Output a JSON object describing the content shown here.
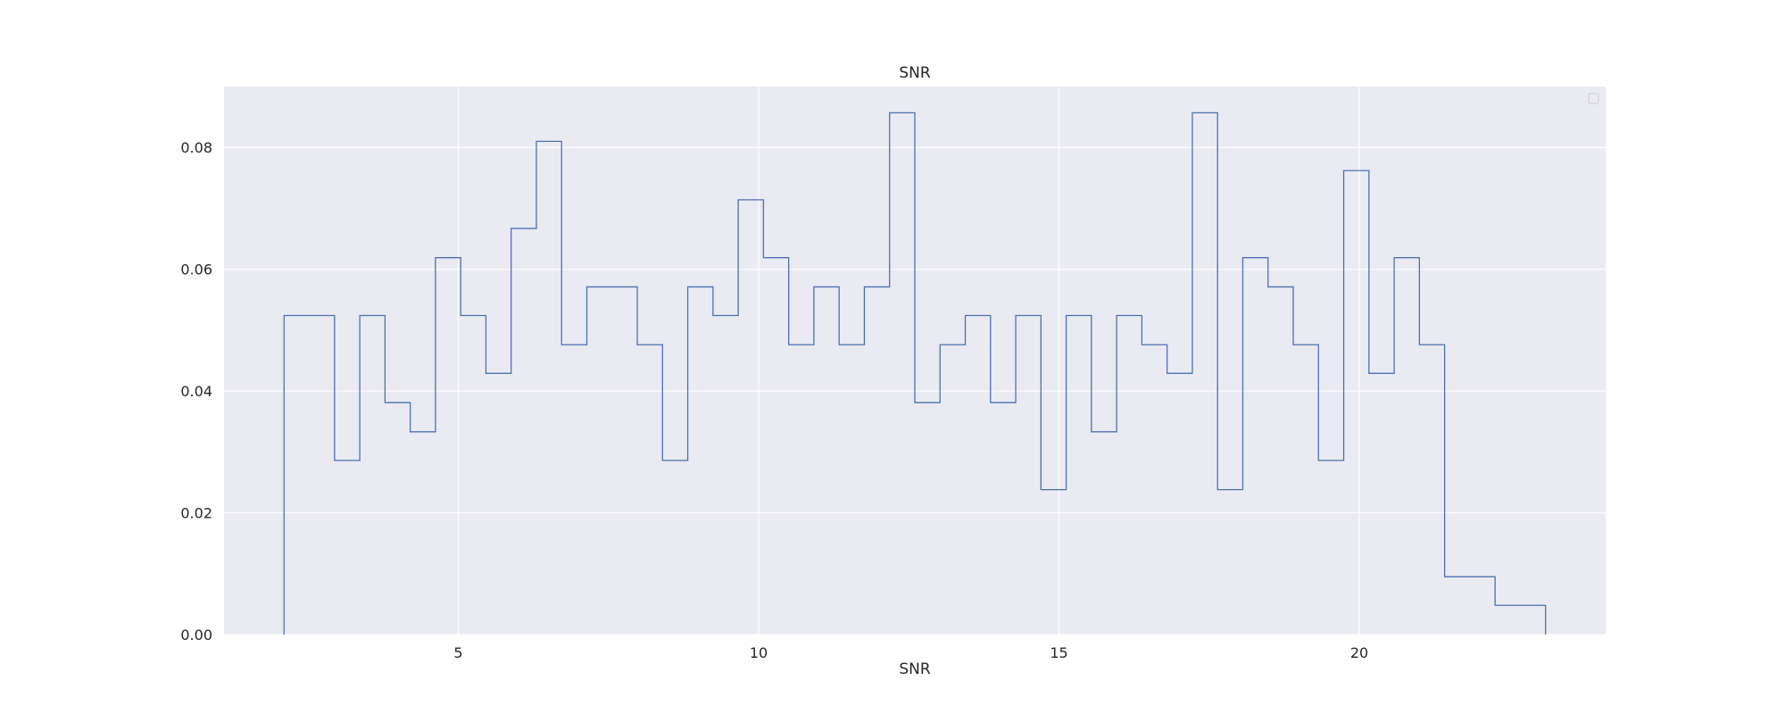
{
  "chart_data": {
    "type": "histogram",
    "title": "SNR",
    "xlabel": "SNR",
    "ylabel": "",
    "xlim": [
      1.1,
      24.1
    ],
    "ylim": [
      0,
      0.09
    ],
    "xticks": [
      5,
      10,
      15,
      20
    ],
    "yticks": [
      0.0,
      0.02,
      0.04,
      0.06,
      0.08
    ],
    "xtick_labels": [
      "5",
      "10",
      "15",
      "20"
    ],
    "ytick_labels": [
      "0.00",
      "0.02",
      "0.04",
      "0.06",
      "0.08"
    ],
    "grid": true,
    "legend": {
      "position": "upper right",
      "entries": []
    },
    "series": [
      {
        "style": "step",
        "color": "#4c72b0",
        "bin_edges": [
          2.1,
          2.52,
          2.94,
          3.36,
          3.78,
          4.2,
          4.62,
          5.04,
          5.46,
          5.88,
          6.3,
          6.72,
          7.14,
          7.56,
          7.98,
          8.4,
          8.82,
          9.24,
          9.66,
          10.08,
          10.5,
          10.92,
          11.34,
          11.76,
          12.18,
          12.6,
          13.02,
          13.44,
          13.86,
          14.28,
          14.7,
          15.12,
          15.54,
          15.96,
          16.38,
          16.8,
          17.22,
          17.64,
          18.06,
          18.48,
          18.9,
          19.32,
          19.74,
          20.16,
          20.58,
          21.0,
          21.42,
          21.84,
          22.26,
          22.68,
          23.1
        ],
        "values": [
          0.0524,
          0.0524,
          0.0286,
          0.0524,
          0.0381,
          0.0333,
          0.0619,
          0.0524,
          0.0429,
          0.0667,
          0.081,
          0.0476,
          0.0571,
          0.0571,
          0.0476,
          0.0286,
          0.0571,
          0.0524,
          0.0714,
          0.0619,
          0.0476,
          0.0571,
          0.0476,
          0.0571,
          0.0857,
          0.0381,
          0.0476,
          0.0524,
          0.0381,
          0.0524,
          0.0238,
          0.0524,
          0.0333,
          0.0524,
          0.0476,
          0.0429,
          0.0857,
          0.0238,
          0.0619,
          0.0571,
          0.0476,
          0.0286,
          0.0762,
          0.0429,
          0.0619,
          0.0476,
          0.0095,
          0.0095,
          0.0048,
          0.0048
        ]
      }
    ],
    "colors": {
      "plot_background": "#eaeaf2",
      "grid": "#ffffff",
      "text": "#262626"
    }
  }
}
